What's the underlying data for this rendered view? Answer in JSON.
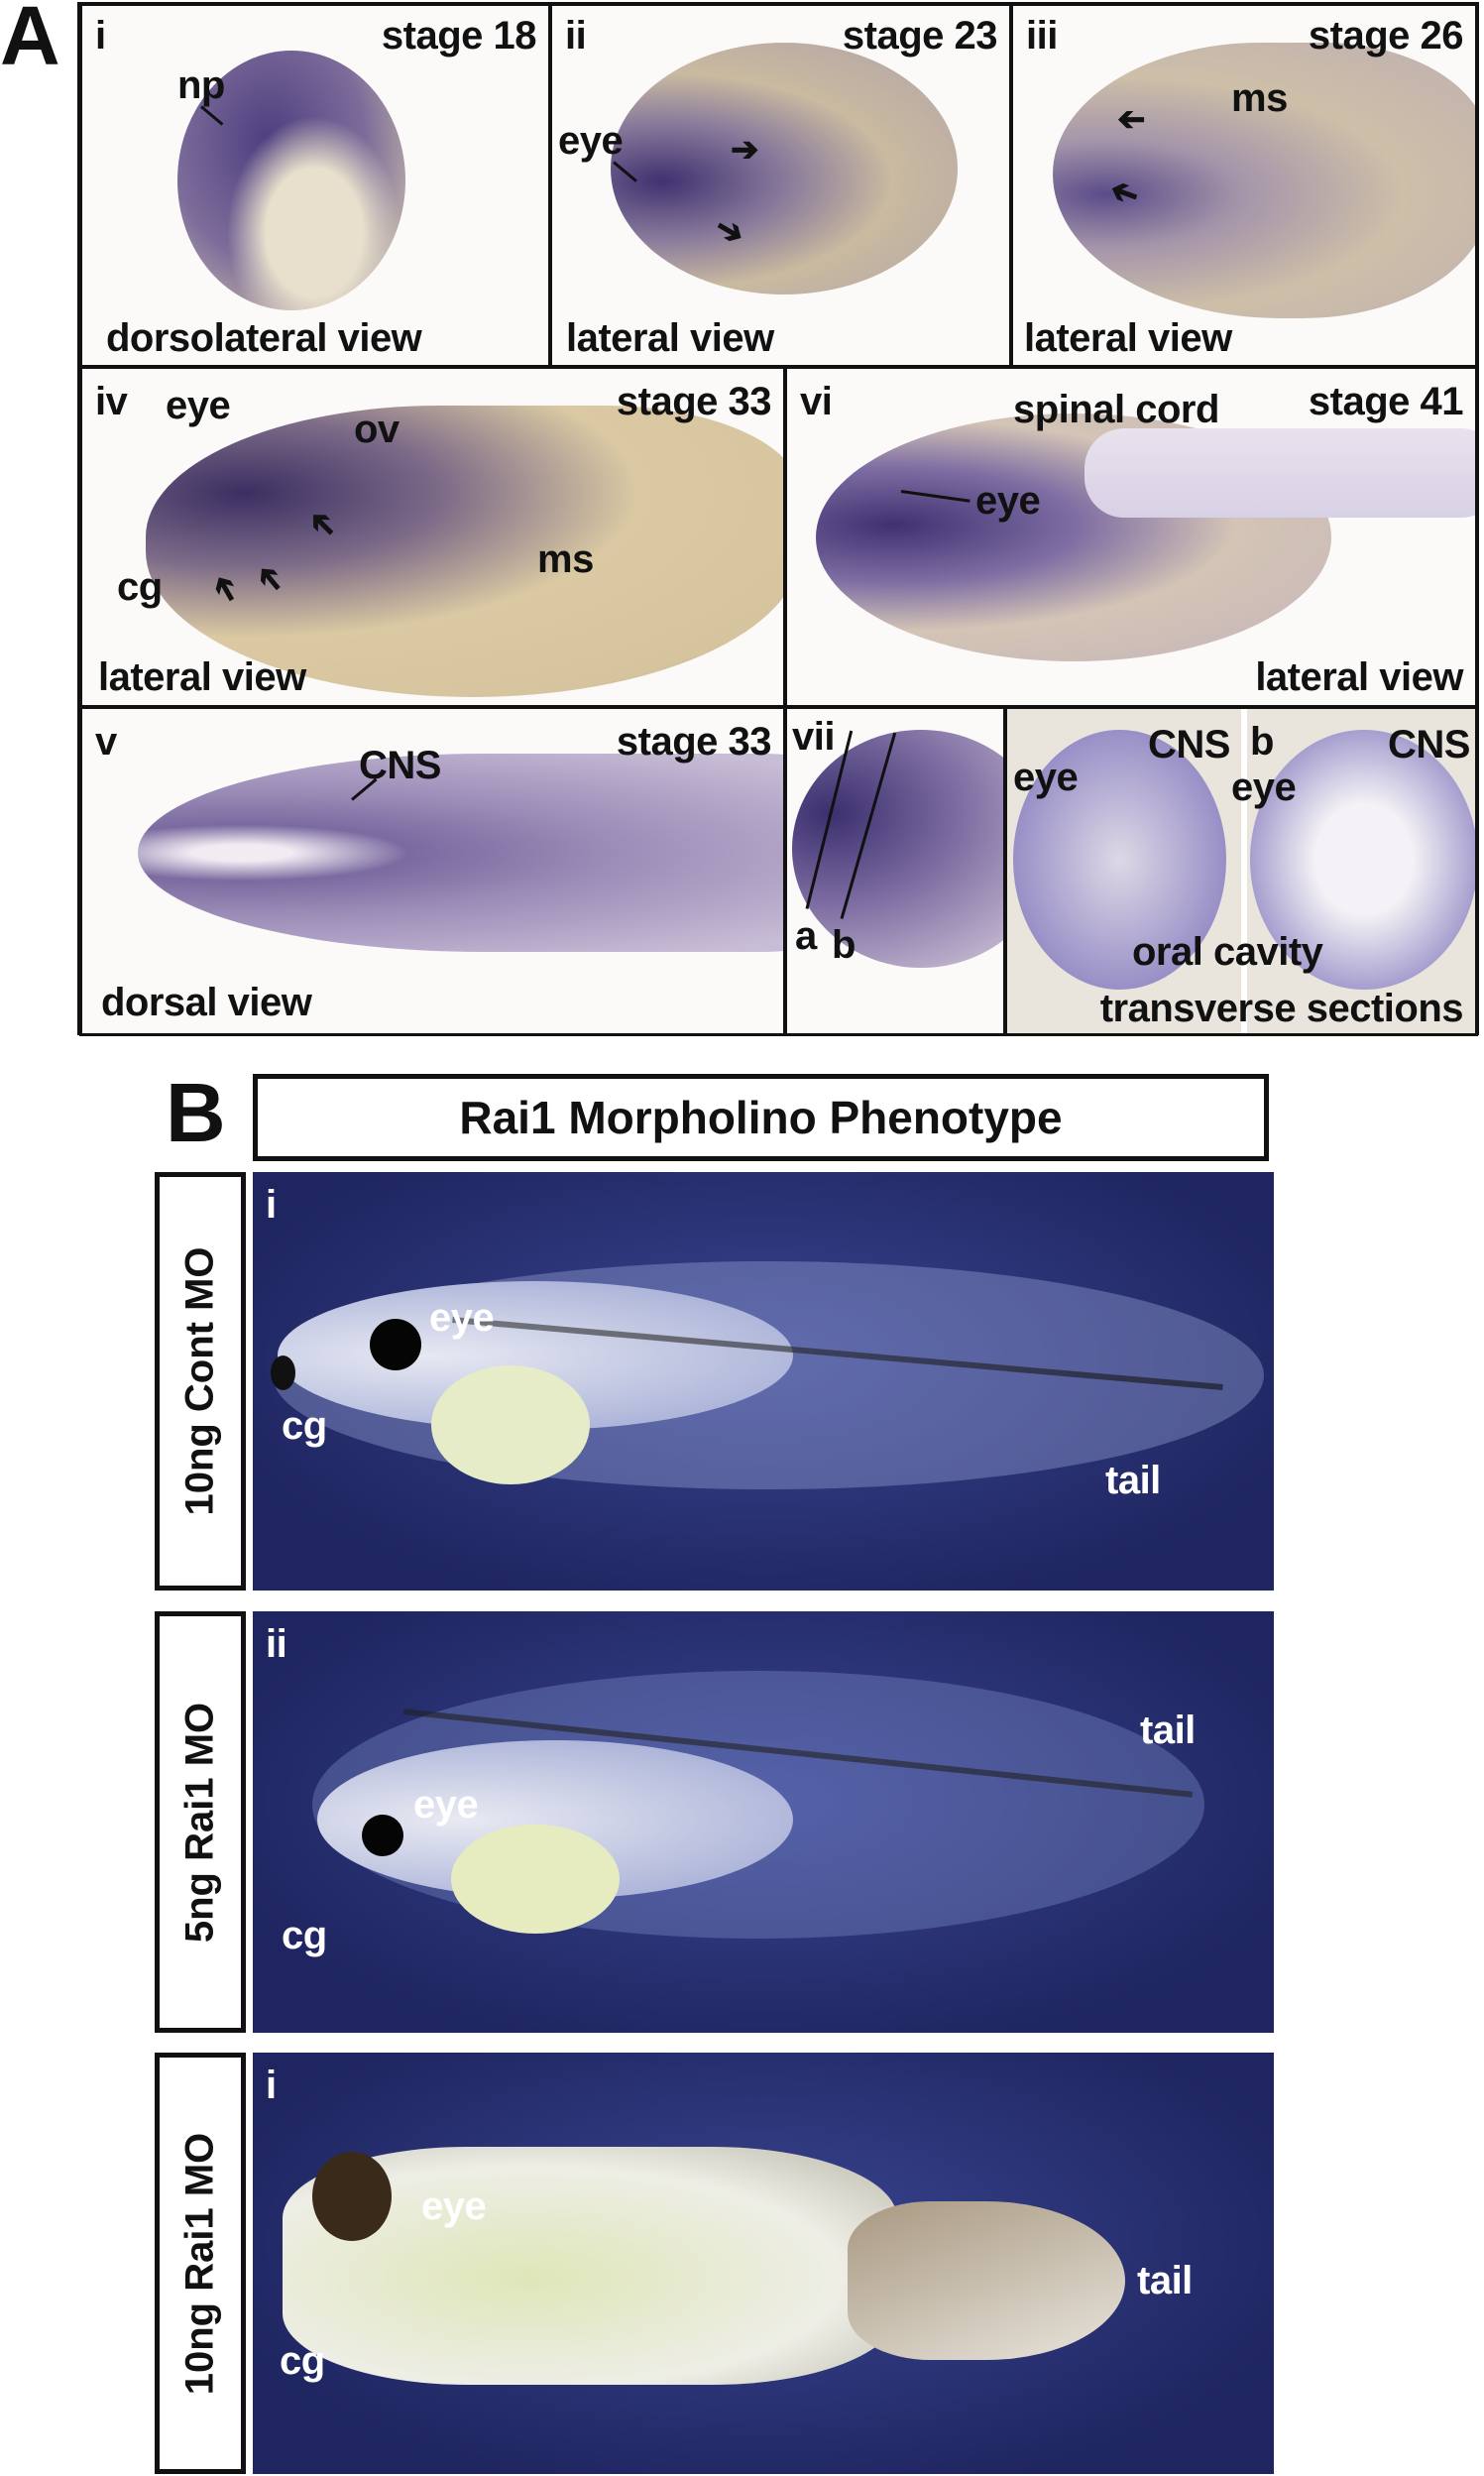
{
  "panel_a": {
    "letter": "A",
    "i": {
      "num": "i",
      "stage": "stage 18",
      "view": "dorsolateral view",
      "labels": [
        "np"
      ]
    },
    "ii": {
      "num": "ii",
      "stage": "stage 23",
      "view": "lateral view",
      "labels": [
        "eye"
      ]
    },
    "iii": {
      "num": "iii",
      "stage": "stage 26",
      "view": "lateral view",
      "labels": [
        "ms"
      ]
    },
    "iv": {
      "num": "iv",
      "stage": "stage 33",
      "view": "lateral view",
      "labels": [
        "eye",
        "ov",
        "cg",
        "ms"
      ]
    },
    "vi": {
      "num": "vi",
      "stage": "stage 41",
      "view": "lateral view",
      "labels": [
        "spinal cord",
        "eye"
      ]
    },
    "v": {
      "num": "v",
      "stage": "stage 33",
      "view": "dorsal view",
      "labels": [
        "CNS"
      ]
    },
    "vii": {
      "num": "vii",
      "labels": [
        "a",
        "b"
      ]
    },
    "sections": {
      "labels": [
        "eye",
        "CNS",
        "b",
        "CNS",
        "eye",
        "oral cavity"
      ],
      "caption": "transverse sections"
    }
  },
  "panel_b": {
    "letter": "B",
    "title": "Rai1 Morpholino Phenotype",
    "rows": [
      {
        "condition": "10ng Cont MO",
        "num": "i",
        "labels": [
          "eye",
          "cg",
          "tail"
        ]
      },
      {
        "condition": "5ng Rai1 MO",
        "num": "ii",
        "labels": [
          "eye",
          "cg",
          "tail"
        ]
      },
      {
        "condition": "10ng Rai1 MO",
        "num": "i",
        "labels": [
          "eye",
          "cg",
          "tail"
        ]
      }
    ]
  },
  "colors": {
    "stain": "#5a4c8f",
    "background_b": "#26306e",
    "yolk": "#d8c9a6"
  }
}
